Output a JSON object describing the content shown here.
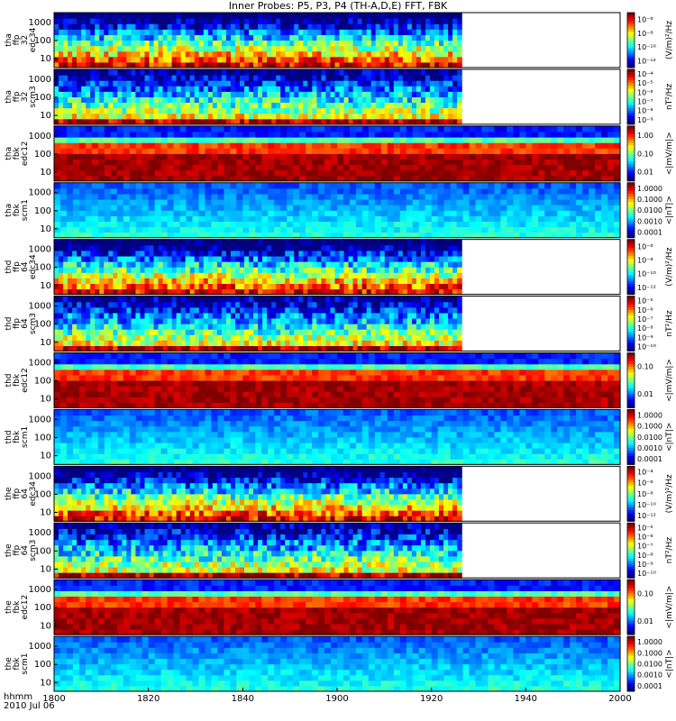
{
  "title": "Inner Probes: P5, P3, P4 (TH-A,D,E) FFT, FBK",
  "chart_data": {
    "type": "heatmap",
    "xlabel": "hhmm",
    "date_label": "2010 Jul 06",
    "x_ticks": [
      "1800",
      "1820",
      "1840",
      "1900",
      "1920",
      "1940",
      "2000"
    ],
    "panels": [
      {
        "ylabel": [
          "tha",
          "ffp",
          "32",
          "edc34"
        ],
        "y_ticks": [
          "1000",
          "100",
          "10"
        ],
        "cbar_label": "(V/m)²/Hz",
        "cbar_ticks": [
          "10⁻⁶",
          "10⁻⁸",
          "10⁻¹⁰",
          "10⁻¹²"
        ],
        "data_end_frac": 0.72
      },
      {
        "ylabel": [
          "tha",
          "ffp",
          "32",
          "scm3"
        ],
        "y_ticks": [
          "1000",
          "100",
          "10"
        ],
        "cbar_label": "nT²/Hz",
        "cbar_ticks": [
          "10⁻⁴",
          "10⁻⁵",
          "10⁻⁶",
          "10⁻⁷",
          "10⁻⁸",
          "10⁻⁹"
        ],
        "data_end_frac": 0.72
      },
      {
        "ylabel": [
          "tha",
          "fbk",
          "edc12"
        ],
        "y_ticks": [
          "1000",
          "100",
          "10"
        ],
        "cbar_label": "<|mV/m|>",
        "cbar_ticks": [
          "1.00",
          "0.10",
          "0.01"
        ],
        "data_end_frac": 1.0
      },
      {
        "ylabel": [
          "tha",
          "fbk",
          "scm1"
        ],
        "y_ticks": [
          "1000",
          "100",
          "10"
        ],
        "cbar_label": "<|nT|>",
        "cbar_ticks": [
          "1.0000",
          "0.1000",
          "0.0100",
          "0.0010",
          "0.0001"
        ],
        "data_end_frac": 1.0
      },
      {
        "ylabel": [
          "thd",
          "ffp",
          "64",
          "edc34"
        ],
        "y_ticks": [
          "1000",
          "100",
          "10"
        ],
        "cbar_label": "(V/m)²/Hz",
        "cbar_ticks": [
          "10⁻⁶",
          "10⁻⁸",
          "10⁻¹⁰",
          "10⁻¹²"
        ],
        "data_end_frac": 0.72
      },
      {
        "ylabel": [
          "thd",
          "ffp",
          "64",
          "scm3"
        ],
        "y_ticks": [
          "1000",
          "100",
          "10"
        ],
        "cbar_label": "nT²/Hz",
        "cbar_ticks": [
          "10⁻⁵",
          "10⁻⁶",
          "10⁻⁷",
          "10⁻⁸",
          "10⁻⁹",
          "10⁻¹⁰"
        ],
        "data_end_frac": 0.72
      },
      {
        "ylabel": [
          "thd",
          "fbk",
          "edc12"
        ],
        "y_ticks": [
          "1000",
          "100",
          "10"
        ],
        "cbar_label": "<|mV/m|>",
        "cbar_ticks": [
          "0.10",
          "0.01"
        ],
        "data_end_frac": 1.0
      },
      {
        "ylabel": [
          "thd",
          "fbk",
          "scm1"
        ],
        "y_ticks": [
          "1000",
          "100",
          "10"
        ],
        "cbar_label": "<|nT|>",
        "cbar_ticks": [
          "1.0000",
          "0.1000",
          "0.0100",
          "0.0010",
          "0.0001"
        ],
        "data_end_frac": 1.0
      },
      {
        "ylabel": [
          "the",
          "ffp",
          "64",
          "edc34"
        ],
        "y_ticks": [
          "1000",
          "100",
          "10"
        ],
        "cbar_label": "(V/m)²/Hz",
        "cbar_ticks": [
          "10⁻⁴",
          "10⁻⁶",
          "10⁻⁸",
          "10⁻¹⁰",
          "10⁻¹²"
        ],
        "data_end_frac": 0.72
      },
      {
        "ylabel": [
          "the",
          "ffp",
          "64",
          "scm3"
        ],
        "y_ticks": [
          "1000",
          "100",
          "10"
        ],
        "cbar_label": "nT²/Hz",
        "cbar_ticks": [
          "10⁻⁵",
          "10⁻⁶",
          "10⁻⁷",
          "10⁻⁸",
          "10⁻⁹",
          "10⁻¹⁰"
        ],
        "data_end_frac": 0.72
      },
      {
        "ylabel": [
          "the",
          "fbk",
          "edc12"
        ],
        "y_ticks": [
          "1000",
          "100",
          "10"
        ],
        "cbar_label": "<|mV/m|>",
        "cbar_ticks": [
          "0.10",
          "0.01"
        ],
        "data_end_frac": 1.0
      },
      {
        "ylabel": [
          "the",
          "fbk",
          "scm1"
        ],
        "y_ticks": [
          "1000",
          "100",
          "10"
        ],
        "cbar_label": "<|nT|>",
        "cbar_ticks": [
          "1.0000",
          "0.1000",
          "0.0100",
          "0.0010",
          "0.0001"
        ],
        "data_end_frac": 1.0
      }
    ]
  }
}
